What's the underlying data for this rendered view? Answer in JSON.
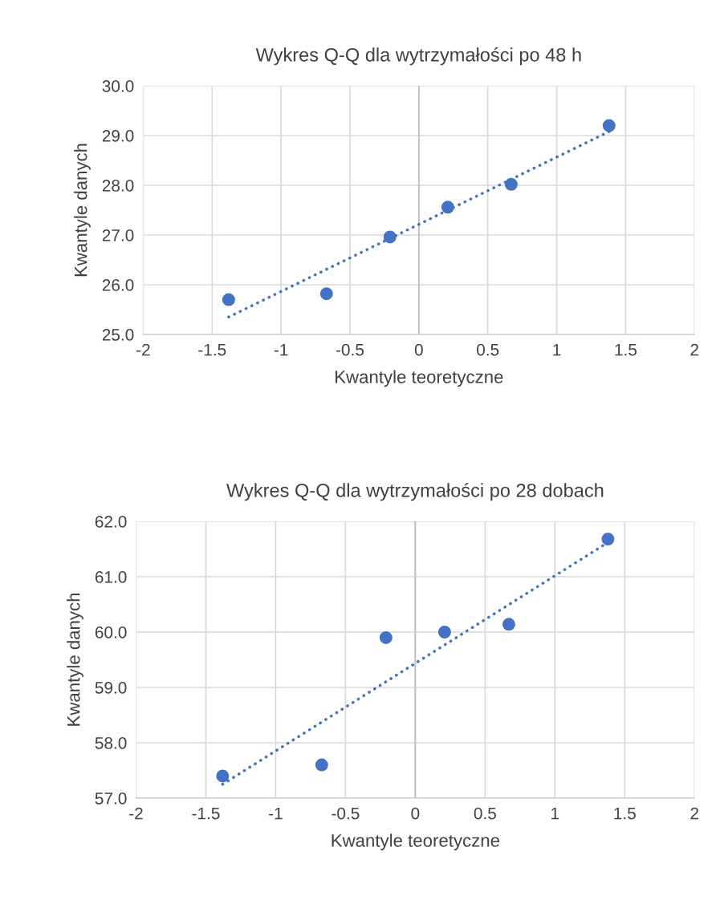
{
  "chart_data": [
    {
      "type": "scatter",
      "title": "Wykres Q-Q dla wytrzymałości po 48 h",
      "xlabel": "Kwantyle teoretyczne",
      "ylabel": "Kwantyle danych",
      "xlim": [
        -2,
        2
      ],
      "xticks": [
        -2,
        -1.5,
        -1,
        -0.5,
        0,
        0.5,
        1,
        1.5,
        2
      ],
      "ylim": [
        25,
        30
      ],
      "yticks": [
        {
          "value": 25,
          "label": "25.0"
        },
        {
          "value": 26,
          "label": "26.0"
        },
        {
          "value": 27,
          "label": "27.0"
        },
        {
          "value": 28,
          "label": "28.0"
        },
        {
          "value": 29,
          "label": "29.0"
        },
        {
          "value": 30,
          "label": "30.0"
        }
      ],
      "grid": true,
      "ref_lines": [
        {
          "axis": "x",
          "value": 0,
          "color": "#bfbfbf"
        }
      ],
      "series": [
        {
          "type": "scatter",
          "marker": "circle",
          "color": "#4472c4",
          "x": [
            -1.38,
            -0.67,
            -0.21,
            0.21,
            0.67,
            1.38
          ],
          "values": [
            25.7,
            25.82,
            26.96,
            27.56,
            28.02,
            29.2
          ]
        },
        {
          "type": "line",
          "color": "#4472c4",
          "line_style": "dotted",
          "x": [
            -1.38,
            1.38
          ],
          "values": [
            25.35,
            29.08
          ]
        }
      ]
    },
    {
      "type": "scatter",
      "title": "Wykres Q-Q dla wytrzymałości po 28 dobach",
      "xlabel": "Kwantyle teoretyczne",
      "ylabel": "Kwantyle danych",
      "xlim": [
        -2,
        2
      ],
      "xticks": [
        -2,
        -1.5,
        -1,
        -0.5,
        0,
        0.5,
        1,
        1.5,
        2
      ],
      "ylim": [
        57,
        62
      ],
      "yticks": [
        {
          "value": 57,
          "label": "57.0"
        },
        {
          "value": 58,
          "label": "58.0"
        },
        {
          "value": 59,
          "label": "59.0"
        },
        {
          "value": 60,
          "label": "60.0"
        },
        {
          "value": 61,
          "label": "61.0"
        },
        {
          "value": 62,
          "label": "62.0"
        }
      ],
      "grid": true,
      "ref_lines": [
        {
          "axis": "x",
          "value": 0,
          "color": "#bfbfbf"
        }
      ],
      "series": [
        {
          "type": "scatter",
          "marker": "circle",
          "color": "#4472c4",
          "x": [
            -1.38,
            -0.67,
            -0.21,
            0.21,
            0.67,
            1.38
          ],
          "values": [
            57.4,
            57.6,
            59.9,
            60.0,
            60.14,
            61.68
          ]
        },
        {
          "type": "line",
          "color": "#4472c4",
          "line_style": "dotted",
          "x": [
            -1.38,
            1.38
          ],
          "values": [
            57.25,
            61.62
          ]
        }
      ]
    }
  ]
}
